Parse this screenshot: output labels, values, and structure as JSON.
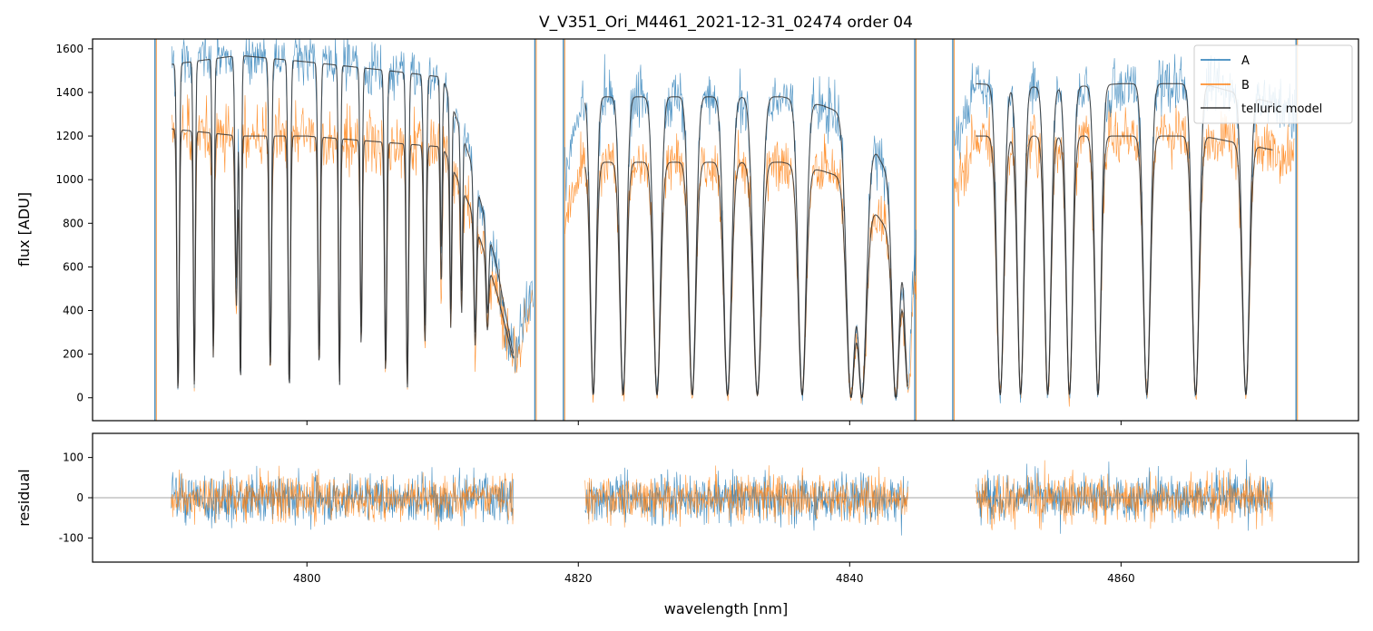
{
  "chart_data": {
    "title": "V_V351_Ori_M4461_2021-12-31_02474  order 04",
    "xlabel": "wavelength [nm]",
    "xlim": [
      4784.2,
      4877.5
    ],
    "x_ticks": [
      "4800",
      "4820",
      "4840",
      "4860"
    ],
    "x_tick_values": [
      4800,
      4820,
      4840,
      4860
    ],
    "colors": {
      "A": "#1f77b4",
      "B": "#ff7f0e",
      "model": "#333333",
      "zero": "#888888"
    },
    "panels": [
      {
        "name": "spectrum",
        "type": "line",
        "ylabel": "flux [ADU]",
        "ylim": [
          -105,
          1645
        ],
        "y_ticks": [
          "0",
          "200",
          "400",
          "600",
          "800",
          "1000",
          "1200",
          "1400",
          "1600"
        ],
        "y_tick_values": [
          0,
          200,
          400,
          600,
          800,
          1000,
          1200,
          1400,
          1600
        ],
        "legend": {
          "position": "top-right",
          "entries": [
            "A",
            "B",
            "telluric model"
          ]
        },
        "continuum_A": {
          "x": [
            4789,
            4795,
            4800,
            4806,
            4810,
            4812,
            4814,
            4815.2,
            4820.5,
            4830,
            4835,
            4838,
            4840,
            4842,
            4843,
            4844,
            4845,
            4849.3,
            4855,
            4860,
            4866,
            4872.5
          ],
          "y": [
            1520,
            1570,
            1540,
            1500,
            1470,
            1100,
            600,
            200,
            1380,
            1380,
            1380,
            1340,
            1290,
            1120,
            1000,
            780,
            700,
            1440,
            1420,
            1440,
            1440,
            1330
          ]
        },
        "continuum_B": {
          "x": [
            4789,
            4795,
            4800,
            4806,
            4810,
            4812,
            4814,
            4815.2,
            4820.5,
            4830,
            4835,
            4838,
            4840,
            4842,
            4843,
            4844,
            4845,
            4849.3,
            4855,
            4860,
            4866,
            4872.5
          ],
          "y": [
            1240,
            1200,
            1200,
            1170,
            1150,
            880,
            480,
            180,
            1080,
            1080,
            1080,
            1040,
            1000,
            840,
            750,
            590,
            520,
            1200,
            1200,
            1200,
            1200,
            1120
          ]
        },
        "absorption_lines": {
          "center": [
            4790.5,
            4791.7,
            4793.1,
            4794.8,
            4795.1,
            4797.3,
            4798.7,
            4800.9,
            4802.4,
            4804.0,
            4805.8,
            4807.4,
            4808.7,
            4809.9,
            4810.6,
            4811.4,
            4812.4,
            4813.3,
            4821.1,
            4823.3,
            4825.8,
            4828.4,
            4831.0,
            4833.2,
            4836.5,
            4840.1,
            4840.9,
            4843.4,
            4844.3,
            4851.1,
            4852.6,
            4854.6,
            4856.2,
            4858.3,
            4861.9,
            4865.5,
            4869.2
          ],
          "depth": [
            0.98,
            0.95,
            0.85,
            0.65,
            0.95,
            0.9,
            0.97,
            0.88,
            0.96,
            0.8,
            0.9,
            0.96,
            0.78,
            0.55,
            0.7,
            0.6,
            0.7,
            0.5,
            0.99,
            0.99,
            0.99,
            0.99,
            0.99,
            0.99,
            0.99,
            1.0,
            1.0,
            1.0,
            0.92,
            0.99,
            0.99,
            0.99,
            0.99,
            0.99,
            0.99,
            0.99,
            0.99
          ],
          "width_nm": [
            0.18,
            0.15,
            0.15,
            0.2,
            0.15,
            0.18,
            0.18,
            0.18,
            0.15,
            0.16,
            0.18,
            0.18,
            0.2,
            0.15,
            0.15,
            0.15,
            0.2,
            0.2,
            0.45,
            0.5,
            0.55,
            0.55,
            0.6,
            0.65,
            0.6,
            0.7,
            0.7,
            0.55,
            0.5,
            0.55,
            0.5,
            0.5,
            0.5,
            0.5,
            0.55,
            0.55,
            0.55
          ]
        },
        "detector_edges": {
          "x": [
            4788.8,
            4816.8,
            4818.9,
            4844.8,
            4847.6,
            4872.9
          ]
        }
      },
      {
        "name": "residual",
        "type": "line",
        "ylabel": "residual",
        "ylim": [
          -160,
          160
        ],
        "y_ticks": [
          "-100",
          "0",
          "100"
        ],
        "y_tick_values": [
          -100,
          0,
          100
        ],
        "segments": [
          [
            4790,
            4815.2
          ],
          [
            4820.5,
            4844.3
          ],
          [
            4849.3,
            4871.2
          ]
        ],
        "noise_rms": 38
      }
    ]
  }
}
